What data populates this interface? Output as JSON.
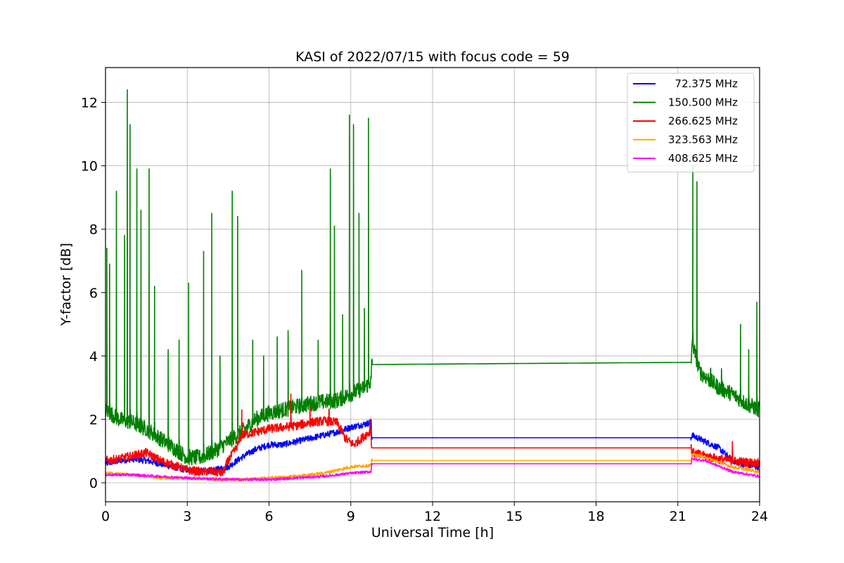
{
  "chart_data": {
    "type": "line",
    "title": "KASI of 2022/07/15 with focus code = 59",
    "xlabel": "Universal Time [h]",
    "ylabel": "Y-factor [dB]",
    "xlim": [
      0,
      24
    ],
    "ylim": [
      -0.6,
      13.1
    ],
    "xticks": [
      0,
      3,
      6,
      9,
      12,
      15,
      18,
      21,
      24
    ],
    "yticks": [
      0,
      2,
      4,
      6,
      8,
      10,
      12
    ],
    "grid": true,
    "legend_position": "top-right",
    "series": [
      {
        "name": "  72.375 MHz",
        "color": "#0000ff",
        "x": [
          0,
          0.5,
          1.0,
          1.5,
          2.0,
          2.5,
          3.0,
          3.5,
          4.0,
          4.5,
          5.0,
          5.5,
          6.0,
          6.5,
          7.0,
          7.5,
          8.0,
          8.5,
          9.0,
          9.5,
          9.75,
          9.76,
          21.5,
          21.51,
          22.0,
          22.5,
          23.0,
          23.5,
          24.0
        ],
        "y": [
          0.6,
          0.7,
          0.75,
          0.7,
          0.6,
          0.5,
          0.4,
          0.35,
          0.4,
          0.5,
          0.8,
          1.05,
          1.2,
          1.2,
          1.3,
          1.4,
          1.5,
          1.6,
          1.75,
          1.85,
          1.9,
          1.42,
          1.42,
          1.5,
          1.3,
          1.1,
          0.7,
          0.55,
          0.5
        ],
        "noise": 0.1
      },
      {
        "name": "150.500 MHz",
        "color": "#008000",
        "x": [
          0,
          0.5,
          1.0,
          1.5,
          2.0,
          2.5,
          3.0,
          3.5,
          4.0,
          4.5,
          5.0,
          5.5,
          6.0,
          6.5,
          7.0,
          7.5,
          8.0,
          8.5,
          9.0,
          9.5,
          9.75,
          9.76,
          21.5,
          21.51,
          21.8,
          22.5,
          23.0,
          23.5,
          24.0
        ],
        "y": [
          2.3,
          2.0,
          1.9,
          1.7,
          1.4,
          1.1,
          0.8,
          0.8,
          1.0,
          1.3,
          1.6,
          2.0,
          2.2,
          2.3,
          2.4,
          2.5,
          2.55,
          2.6,
          2.8,
          3.0,
          3.2,
          3.73,
          3.8,
          4.5,
          3.5,
          3.0,
          2.8,
          2.5,
          2.3
        ],
        "noise": 0.25,
        "spikes": [
          [
            0.05,
            7.4
          ],
          [
            0.15,
            6.9
          ],
          [
            0.4,
            9.2
          ],
          [
            0.7,
            7.8
          ],
          [
            0.8,
            12.4
          ],
          [
            0.9,
            11.3
          ],
          [
            1.15,
            9.9
          ],
          [
            1.3,
            8.6
          ],
          [
            1.6,
            9.9
          ],
          [
            1.8,
            6.2
          ],
          [
            2.3,
            4.2
          ],
          [
            2.7,
            4.5
          ],
          [
            3.05,
            6.3
          ],
          [
            3.6,
            7.3
          ],
          [
            3.9,
            8.5
          ],
          [
            4.2,
            4.0
          ],
          [
            4.65,
            9.2
          ],
          [
            4.85,
            8.4
          ],
          [
            5.4,
            4.5
          ],
          [
            5.8,
            4.0
          ],
          [
            6.3,
            4.6
          ],
          [
            6.7,
            4.8
          ],
          [
            7.2,
            6.7
          ],
          [
            7.8,
            4.5
          ],
          [
            8.25,
            9.9
          ],
          [
            8.4,
            8.1
          ],
          [
            8.7,
            5.3
          ],
          [
            8.95,
            11.6
          ],
          [
            9.1,
            11.3
          ],
          [
            9.3,
            8.5
          ],
          [
            9.5,
            5.5
          ],
          [
            9.65,
            11.5
          ],
          [
            21.55,
            10.0
          ],
          [
            21.7,
            9.5
          ],
          [
            22.2,
            3.6
          ],
          [
            22.6,
            3.6
          ],
          [
            23.3,
            5.0
          ],
          [
            23.6,
            4.2
          ],
          [
            23.9,
            5.7
          ]
        ]
      },
      {
        "name": "266.625 MHz",
        "color": "#ff0000",
        "x": [
          0,
          0.5,
          1.0,
          1.5,
          2.0,
          2.5,
          3.0,
          3.5,
          4.0,
          4.3,
          4.5,
          4.8,
          5.0,
          5.5,
          6.0,
          6.5,
          7.0,
          7.5,
          8.0,
          8.5,
          8.8,
          9.1,
          9.4,
          9.75,
          9.76,
          21.5,
          21.51,
          22.0,
          22.5,
          23.0,
          23.5,
          24.0
        ],
        "y": [
          0.7,
          0.75,
          0.85,
          0.95,
          0.7,
          0.55,
          0.4,
          0.35,
          0.35,
          0.3,
          0.7,
          1.1,
          1.5,
          1.6,
          1.7,
          1.75,
          1.8,
          1.9,
          1.95,
          1.9,
          1.4,
          1.2,
          1.4,
          1.65,
          1.1,
          1.1,
          0.95,
          0.85,
          0.75,
          0.7,
          0.65,
          0.62
        ],
        "noise": 0.14,
        "spikes": [
          [
            5.0,
            2.3
          ],
          [
            6.8,
            2.8
          ],
          [
            7.5,
            2.4
          ],
          [
            8.2,
            2.3
          ],
          [
            9.7,
            1.9
          ],
          [
            23.0,
            1.3
          ]
        ]
      },
      {
        "name": "323.563 MHz",
        "color": "#ffa500",
        "x": [
          0,
          1.0,
          2.0,
          3.0,
          4.0,
          5.0,
          6.0,
          7.0,
          8.0,
          9.0,
          9.75,
          9.76,
          21.5,
          21.51,
          22.0,
          23.0,
          24.0
        ],
        "y": [
          0.3,
          0.25,
          0.15,
          0.15,
          0.1,
          0.1,
          0.15,
          0.2,
          0.3,
          0.5,
          0.55,
          0.7,
          0.7,
          0.9,
          0.8,
          0.5,
          0.35
        ],
        "noise": 0.05
      },
      {
        "name": "408.625 MHz",
        "color": "#ff00ff",
        "x": [
          0,
          1.0,
          2.0,
          3.0,
          4.0,
          5.0,
          6.0,
          7.0,
          8.0,
          9.0,
          9.75,
          9.76,
          21.5,
          21.51,
          22.0,
          23.0,
          24.0
        ],
        "y": [
          0.25,
          0.25,
          0.2,
          0.15,
          0.12,
          0.1,
          0.1,
          0.15,
          0.2,
          0.3,
          0.35,
          0.6,
          0.6,
          0.75,
          0.7,
          0.35,
          0.2
        ],
        "noise": 0.04
      }
    ]
  }
}
